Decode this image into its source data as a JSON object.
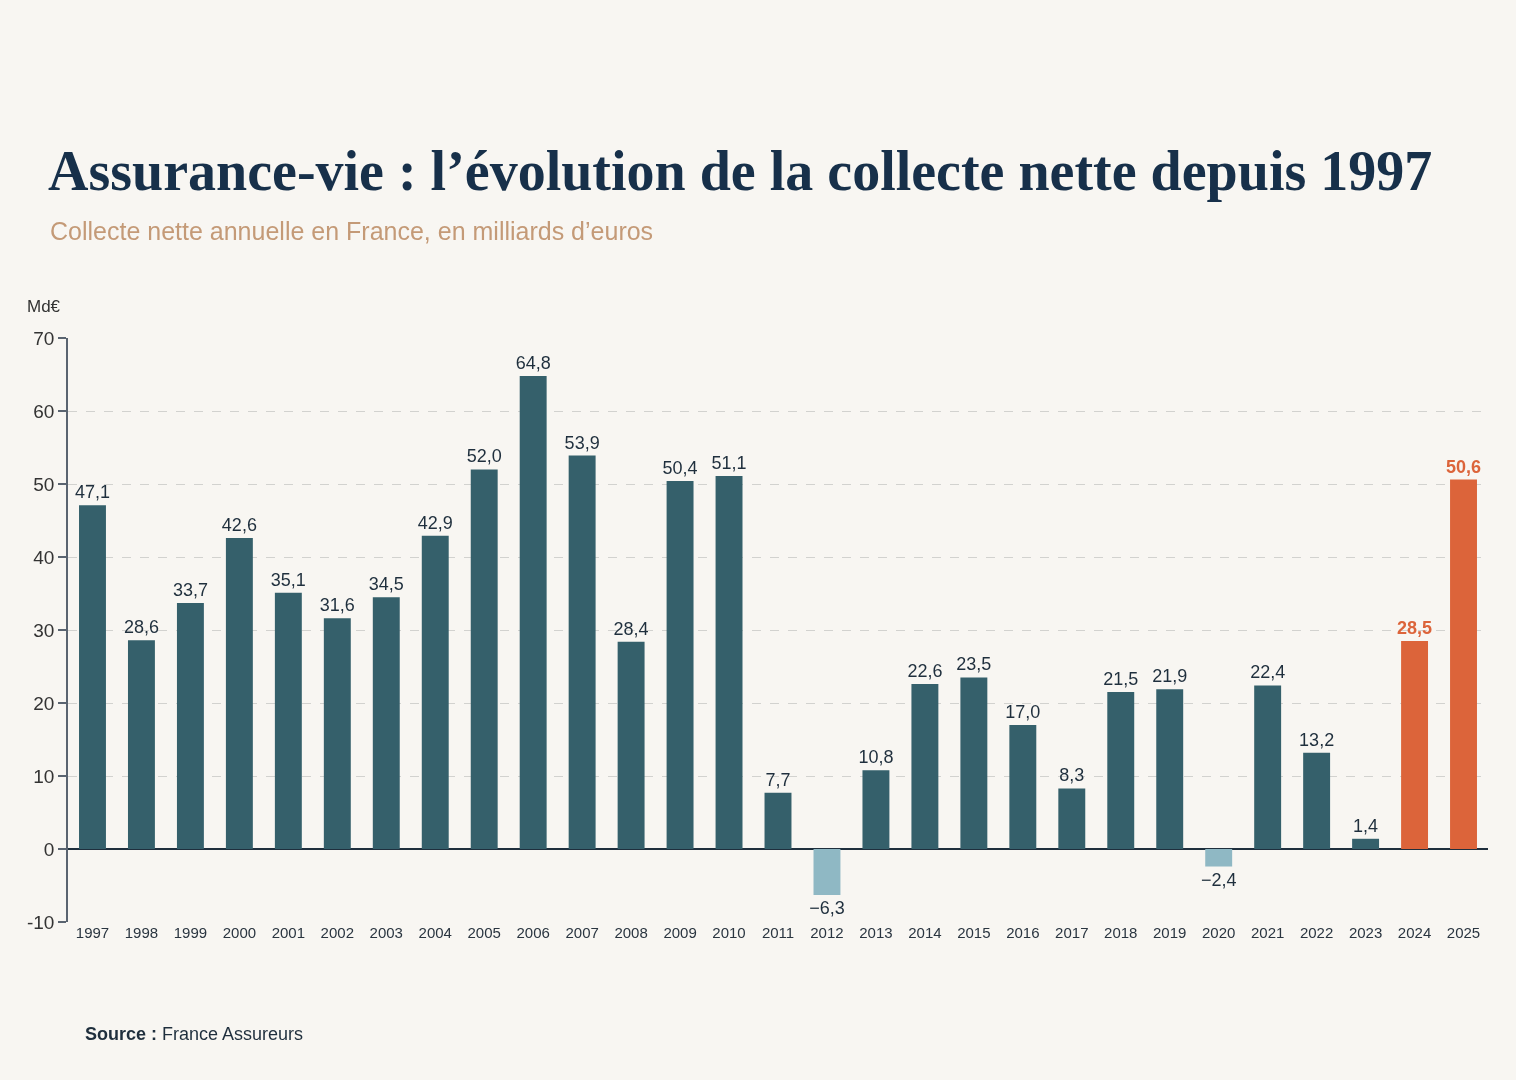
{
  "chart_data": {
    "type": "bar",
    "title": "Assurance-vie : l’évolution de la collecte nette depuis 1997",
    "subtitle": "Collecte nette annuelle en France, en milliards d’euros",
    "ylabel": "Md€",
    "annotations": [
      "Source : France Assureurs"
    ],
    "categories": [
      "1997",
      "1998",
      "1999",
      "2000",
      "2001",
      "2002",
      "2003",
      "2004",
      "2005",
      "2006",
      "2007",
      "2008",
      "2009",
      "2010",
      "2011",
      "2012",
      "2013",
      "2014",
      "2015",
      "2016",
      "2017",
      "2018",
      "2019",
      "2020",
      "2021",
      "2022",
      "2023",
      "2024",
      "2025"
    ],
    "values": [
      47.1,
      28.6,
      33.7,
      42.6,
      35.1,
      31.6,
      34.5,
      42.9,
      52.0,
      64.8,
      53.9,
      28.4,
      50.4,
      51.1,
      7.7,
      -6.3,
      10.8,
      22.6,
      23.5,
      17.0,
      8.3,
      21.5,
      21.9,
      -2.4,
      22.4,
      13.2,
      1.4,
      28.5,
      50.6
    ],
    "colors": [
      "#35606b",
      "#35606b",
      "#35606b",
      "#35606b",
      "#35606b",
      "#35606b",
      "#35606b",
      "#35606b",
      "#35606b",
      "#35606b",
      "#35606b",
      "#35606b",
      "#35606b",
      "#35606b",
      "#35606b",
      "#8fb8c4",
      "#35606b",
      "#35606b",
      "#35606b",
      "#35606b",
      "#35606b",
      "#35606b",
      "#35606b",
      "#8fb8c4",
      "#35606b",
      "#35606b",
      "#35606b",
      "#dc643a",
      "#dc643a"
    ],
    "value_labels": [
      "47,1",
      "28,6",
      "33,7",
      "42,6",
      "35,1",
      "31,6",
      "34,5",
      "42,9",
      "52,0",
      "64,8",
      "53,9",
      "28,4",
      "50,4",
      "51,1",
      "7,7",
      "−6,3",
      "10,8",
      "22,6",
      "23,5",
      "17,0",
      "8,3",
      "21,5",
      "21,9",
      "−2,4",
      "22,4",
      "13,2",
      "1,4",
      "28,5",
      "50,6"
    ],
    "ylim": [
      -10,
      70
    ],
    "yticks": [
      -10,
      0,
      10,
      20,
      30,
      40,
      50,
      60,
      70
    ],
    "grid": "y"
  }
}
